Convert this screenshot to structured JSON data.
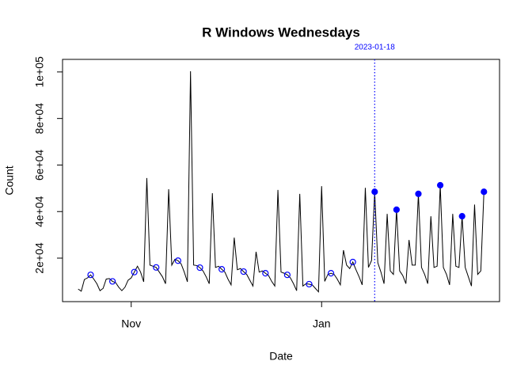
{
  "chart_data": {
    "type": "line",
    "title": "R Windows Wednesdays",
    "xlabel": "Date",
    "ylabel": "Count",
    "x": [
      "2022-10-15",
      "2022-10-16",
      "2022-10-17",
      "2022-10-18",
      "2022-10-19",
      "2022-10-20",
      "2022-10-21",
      "2022-10-22",
      "2022-10-23",
      "2022-10-24",
      "2022-10-25",
      "2022-10-26",
      "2022-10-27",
      "2022-10-28",
      "2022-10-29",
      "2022-10-30",
      "2022-10-31",
      "2022-11-01",
      "2022-11-02",
      "2022-11-03",
      "2022-11-04",
      "2022-11-05",
      "2022-11-06",
      "2022-11-07",
      "2022-11-08",
      "2022-11-09",
      "2022-11-10",
      "2022-11-11",
      "2022-11-12",
      "2022-11-13",
      "2022-11-14",
      "2022-11-15",
      "2022-11-16",
      "2022-11-17",
      "2022-11-18",
      "2022-11-19",
      "2022-11-20",
      "2022-11-21",
      "2022-11-22",
      "2022-11-23",
      "2022-11-24",
      "2022-11-25",
      "2022-11-26",
      "2022-11-27",
      "2022-11-28",
      "2022-11-29",
      "2022-11-30",
      "2022-12-01",
      "2022-12-02",
      "2022-12-03",
      "2022-12-04",
      "2022-12-05",
      "2022-12-06",
      "2022-12-07",
      "2022-12-08",
      "2022-12-09",
      "2022-12-10",
      "2022-12-11",
      "2022-12-12",
      "2022-12-13",
      "2022-12-14",
      "2022-12-15",
      "2022-12-16",
      "2022-12-17",
      "2022-12-18",
      "2022-12-19",
      "2022-12-20",
      "2022-12-21",
      "2022-12-22",
      "2022-12-23",
      "2022-12-24",
      "2022-12-25",
      "2022-12-26",
      "2022-12-27",
      "2022-12-28",
      "2022-12-29",
      "2022-12-30",
      "2022-12-31",
      "2023-01-01",
      "2023-01-02",
      "2023-01-03",
      "2023-01-04",
      "2023-01-05",
      "2023-01-06",
      "2023-01-07",
      "2023-01-08",
      "2023-01-09",
      "2023-01-10",
      "2023-01-11",
      "2023-01-12",
      "2023-01-13",
      "2023-01-14",
      "2023-01-15",
      "2023-01-16",
      "2023-01-17",
      "2023-01-18",
      "2023-01-19",
      "2023-01-20",
      "2023-01-21",
      "2023-01-22",
      "2023-01-23",
      "2023-01-24",
      "2023-01-25",
      "2023-01-26",
      "2023-01-27",
      "2023-01-28",
      "2023-01-29",
      "2023-01-30",
      "2023-01-31",
      "2023-02-01",
      "2023-02-02",
      "2023-02-03",
      "2023-02-04",
      "2023-02-05",
      "2023-02-06",
      "2023-02-07",
      "2023-02-08",
      "2023-02-09",
      "2023-02-10",
      "2023-02-11",
      "2023-02-12",
      "2023-02-13",
      "2023-02-14",
      "2023-02-15",
      "2023-02-16",
      "2023-02-17",
      "2023-02-18",
      "2023-02-19",
      "2023-02-20",
      "2023-02-21",
      "2023-02-22"
    ],
    "values": [
      6700,
      5800,
      10800,
      11500,
      12800,
      11000,
      9000,
      6000,
      7000,
      11000,
      11200,
      10000,
      9500,
      7500,
      6000,
      7500,
      10500,
      11500,
      14000,
      16500,
      14000,
      9800,
      54400,
      17000,
      16500,
      16000,
      14000,
      12000,
      9000,
      49600,
      17000,
      19500,
      18900,
      17500,
      14000,
      9800,
      100300,
      17000,
      16800,
      15900,
      14500,
      12000,
      9000,
      47900,
      16000,
      16500,
      15200,
      14000,
      11000,
      8500,
      28800,
      15000,
      15500,
      14200,
      13000,
      10500,
      8000,
      22700,
      14000,
      14500,
      13500,
      12500,
      10000,
      8000,
      49300,
      14000,
      13500,
      12800,
      11500,
      9000,
      6000,
      47600,
      8000,
      9000,
      8800,
      8500,
      7000,
      5500,
      50900,
      10000,
      13000,
      13500,
      13000,
      11000,
      8500,
      23400,
      17000,
      15500,
      18300,
      15000,
      12000,
      8500,
      50200,
      16000,
      19000,
      48500,
      18000,
      14000,
      9000,
      39000,
      14500,
      13000,
      40800,
      14500,
      12500,
      9000,
      27800,
      17000,
      17000,
      47600,
      16000,
      13000,
      9000,
      38000,
      16000,
      16500,
      51300,
      16000,
      13000,
      8500,
      39000,
      16500,
      16000,
      38000,
      16000,
      12000,
      8000,
      43000,
      13000,
      14500,
      48500
    ],
    "color": "black",
    "marker_color": "blue",
    "vline": {
      "x": "2023-01-18",
      "label": "2023-01-18",
      "color": "blue"
    },
    "xlim": [
      "2022-10-10",
      "2023-02-27"
    ],
    "xticks": [
      {
        "value": "2022-11-01",
        "label": "Nov"
      },
      {
        "value": "2023-01-01",
        "label": "Jan"
      }
    ],
    "ylim": [
      1300,
      105400
    ],
    "yticks": [
      {
        "value": 20000,
        "label": "2e+04"
      },
      {
        "value": 40000,
        "label": "4e+04"
      },
      {
        "value": 60000,
        "label": "6e+04"
      },
      {
        "value": 80000,
        "label": "8e+04"
      },
      {
        "value": 100000,
        "label": "1e+05"
      }
    ]
  }
}
